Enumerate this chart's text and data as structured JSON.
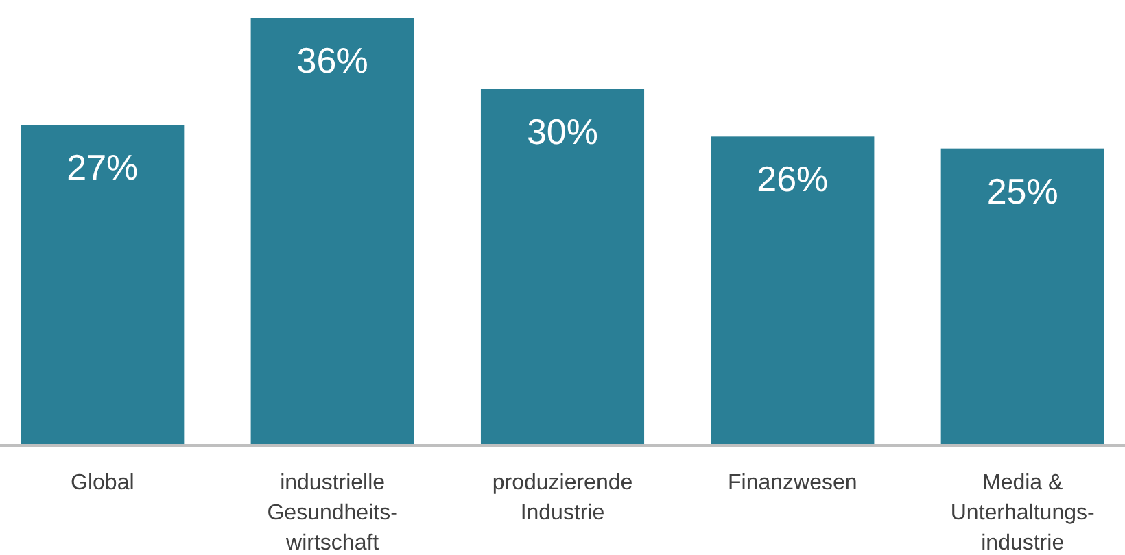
{
  "chart_data": {
    "type": "bar",
    "categories": [
      "Global",
      "industrielle\nGesundheits-\nwirtschaft",
      "produzierende\nIndustrie",
      "Finanzwesen",
      "Media &\nUnterhaltungs-\nindustrie"
    ],
    "values": [
      27,
      36,
      30,
      26,
      25
    ],
    "value_labels": [
      "27%",
      "36%",
      "30%",
      "26%",
      "25%"
    ],
    "color": "#2a7f96"
  }
}
